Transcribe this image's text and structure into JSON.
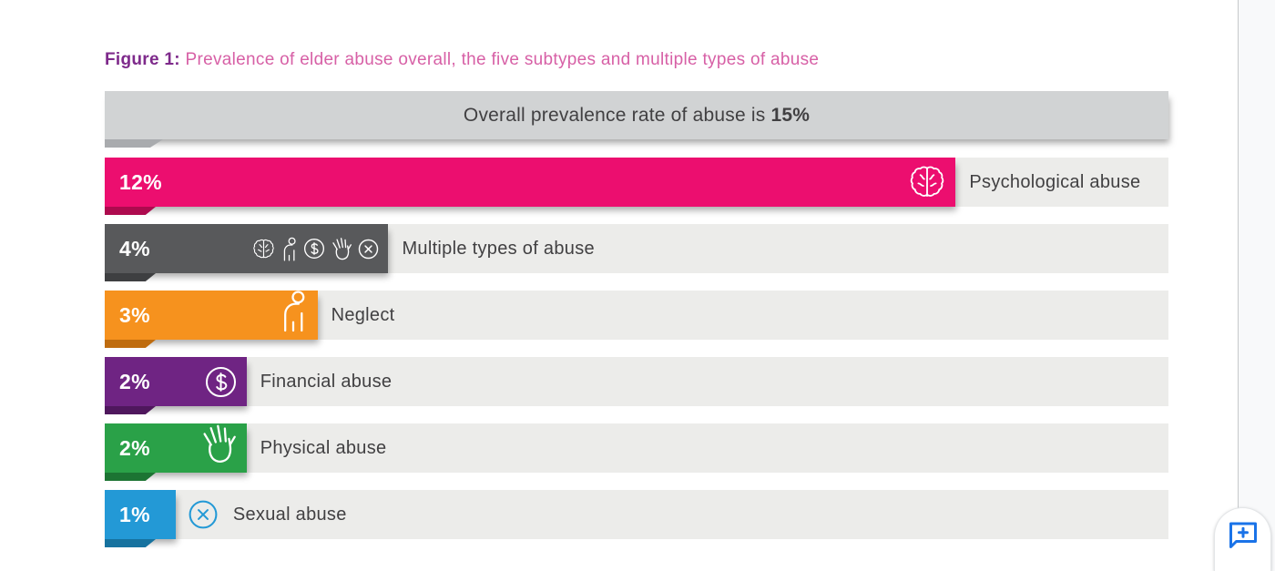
{
  "figure": {
    "label": "Figure 1:",
    "title": "Prevalence of elder abuse overall, the five subtypes and multiple types of abuse"
  },
  "overall": {
    "prefix": "Overall prevalence rate of abuse is",
    "value": "15%"
  },
  "bars": [
    {
      "value_label": "12%",
      "label": "Psychological abuse",
      "pct": 12,
      "color": "#EC0E6F",
      "fold_color": "#AD0A4E",
      "icons": [
        "brain-icon"
      ]
    },
    {
      "value_label": "4%",
      "label": "Multiple types of abuse",
      "pct": 4,
      "color": "#58595B",
      "fold_color": "#3E3F41",
      "icons": [
        "brain-icon",
        "person-icon",
        "dollar-icon",
        "hand-icon",
        "x-circle-icon"
      ]
    },
    {
      "value_label": "3%",
      "label": "Neglect",
      "pct": 3,
      "color": "#F6921E",
      "fold_color": "#BF6C0F",
      "icons": [
        "person-icon"
      ]
    },
    {
      "value_label": "2%",
      "label": "Financial abuse",
      "pct": 2,
      "color": "#6F2483",
      "fold_color": "#4F175D",
      "icons": [
        "dollar-icon"
      ]
    },
    {
      "value_label": "2%",
      "label": "Physical abuse",
      "pct": 2,
      "color": "#2AA148",
      "fold_color": "#1C7433",
      "icons": [
        "hand-icon"
      ]
    },
    {
      "value_label": "1%",
      "label": "Sexual abuse",
      "pct": 1,
      "color": "#2399D6",
      "fold_color": "#16729F",
      "icons": [
        "x-circle-icon"
      ]
    }
  ],
  "chart_data": {
    "type": "bar",
    "orientation": "horizontal",
    "title": "Figure 1: Prevalence of elder abuse overall, the five subtypes and multiple types of abuse",
    "categories": [
      "Psychological abuse",
      "Multiple types of abuse",
      "Neglect",
      "Financial abuse",
      "Physical abuse",
      "Sexual abuse"
    ],
    "values": [
      12,
      4,
      3,
      2,
      2,
      1
    ],
    "value_labels": [
      "12%",
      "4%",
      "3%",
      "2%",
      "2%",
      "1%"
    ],
    "unit": "percent",
    "overall_annotation": "Overall prevalence rate of abuse is 15%",
    "overall_value": 15,
    "xlim": [
      0,
      15
    ],
    "bar_colors": [
      "#EC0E6F",
      "#58595B",
      "#F6921E",
      "#6F2483",
      "#2AA148",
      "#2399D6"
    ],
    "track_color": "#ECECEA",
    "grid": false,
    "legend": "none"
  },
  "colors": {
    "title_label": "#7E2A8B",
    "title_text": "#D760A6",
    "overall_bar": "#D1D3D4",
    "text": "#414042",
    "comment_blue": "#1A73E8"
  },
  "viewer": {
    "comment_button_icon": "add-comment-icon"
  }
}
